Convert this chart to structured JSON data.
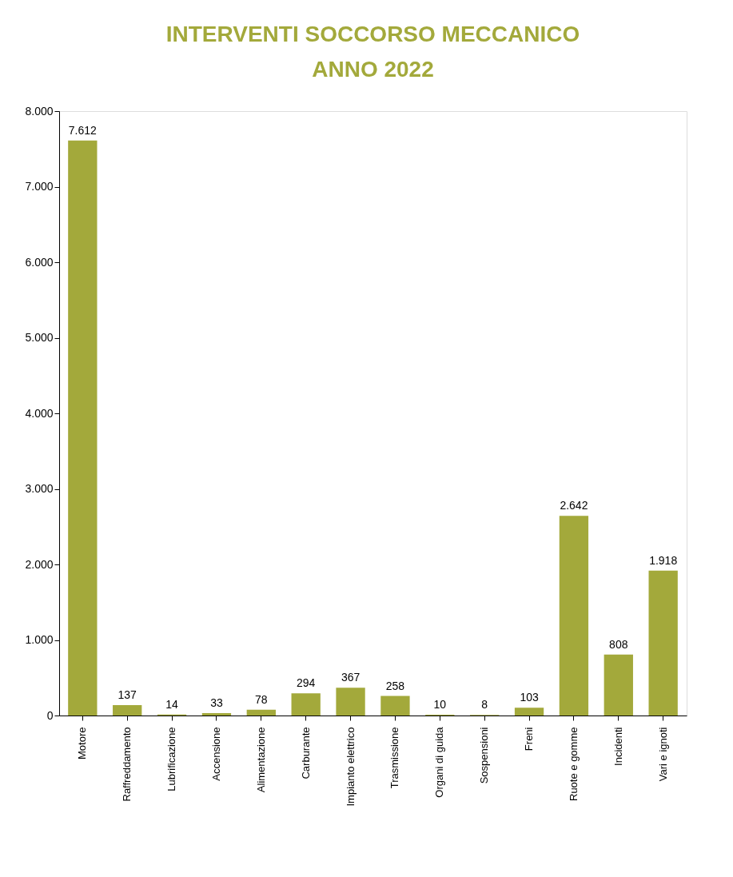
{
  "chart_data": {
    "type": "bar",
    "title": [
      "INTERVENTI SOCCORSO MECCANICO",
      "ANNO 2022"
    ],
    "categories": [
      "Motore",
      "Raffreddamento",
      "Lubrificazione",
      "Accensione",
      "Alimentazione",
      "Carburante",
      "Impianto elettrico",
      "Trasmissione",
      "Organi di guida",
      "Sospensioni",
      "Freni",
      "Ruote e gomme",
      "Incidenti",
      "Vari e ignoti"
    ],
    "values": [
      7612,
      137,
      14,
      33,
      78,
      294,
      367,
      258,
      10,
      8,
      103,
      2642,
      808,
      1918
    ],
    "value_labels": [
      "7.612",
      "137",
      "14",
      "33",
      "78",
      "294",
      "367",
      "258",
      "10",
      "8",
      "103",
      "2.642",
      "808",
      "1.918"
    ],
    "color": "#a3a93b",
    "ylim": [
      0,
      8000
    ],
    "yticks": [
      {
        "value": 0,
        "label": "0"
      },
      {
        "value": 1000,
        "label": "1.000"
      },
      {
        "value": 2000,
        "label": "2.000"
      },
      {
        "value": 3000,
        "label": "3.000"
      },
      {
        "value": 4000,
        "label": "4.000"
      },
      {
        "value": 5000,
        "label": "5.000"
      },
      {
        "value": 6000,
        "label": "6.000"
      },
      {
        "value": 7000,
        "label": "7.000"
      },
      {
        "value": 8000,
        "label": "8.000"
      }
    ],
    "grid": false
  }
}
